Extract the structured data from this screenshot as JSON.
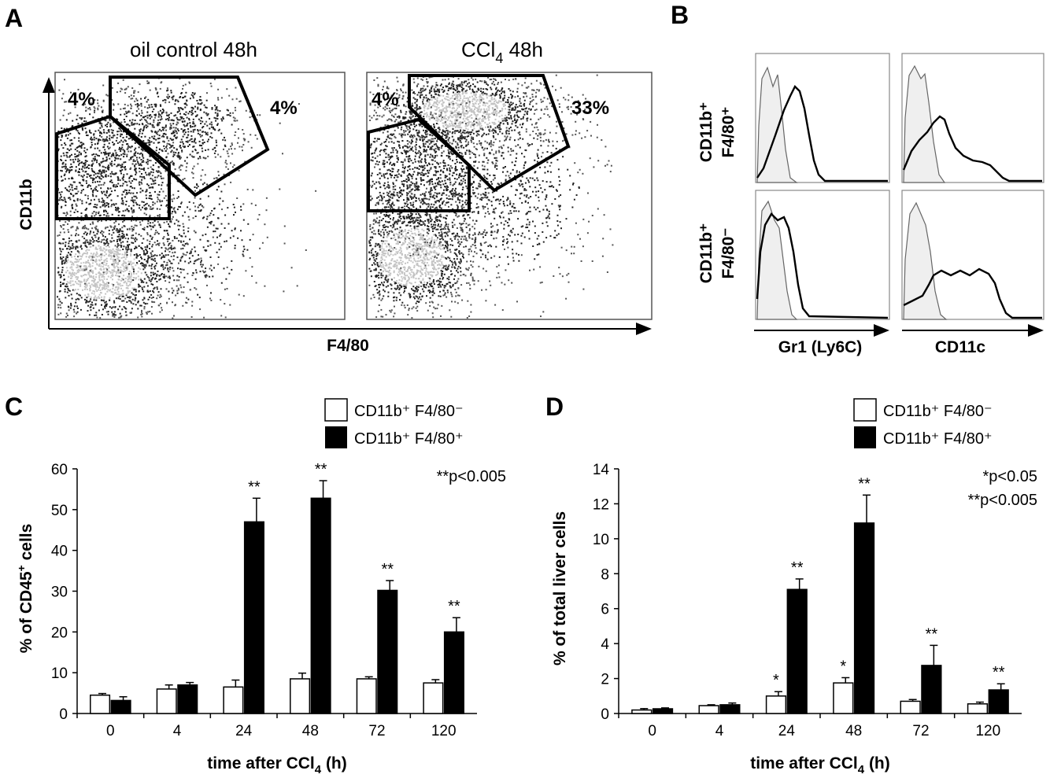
{
  "panels": {
    "a": {
      "label": "A",
      "title_oil": "oil control 48h",
      "title_ccl4_main": "CCl",
      "title_ccl4_sub": "4",
      "title_ccl4_tail": " 48h",
      "y_label": "CD11b",
      "x_label": "F4/80",
      "oil_gates": [
        "4%",
        "4%"
      ],
      "ccl4_gates": [
        "4%",
        "33%"
      ]
    },
    "b": {
      "label": "B",
      "row1_line1": "CD11b⁺",
      "row1_line2": "F4/80⁺",
      "row2_line1": "CD11b⁺",
      "row2_line2": "F4/80⁻",
      "x_label_1": "Gr1 (Ly6C)",
      "x_label_2": "CD11c"
    },
    "c": {
      "label": "C"
    },
    "d": {
      "label": "D"
    }
  },
  "colors": {
    "open_bar": "#ffffff",
    "filled_bar": "#000000",
    "density_light": "#c4c4c4",
    "histogram_fill": "#efefef"
  },
  "chart_data": [
    {
      "type": "bar",
      "panel": "C",
      "categories": [
        "0",
        "4",
        "24",
        "48",
        "72",
        "120"
      ],
      "series": [
        {
          "name": "CD11b⁺ F4/80⁻",
          "values": [
            4.5,
            6.0,
            6.5,
            8.5,
            8.5,
            7.5
          ],
          "errors": [
            0.4,
            1.0,
            1.7,
            1.4,
            0.5,
            0.8
          ],
          "stars": [
            "",
            "",
            "",
            "",
            "",
            ""
          ]
        },
        {
          "name": "CD11b⁺ F4/80⁺",
          "values": [
            3.2,
            7.0,
            47.0,
            52.8,
            30.2,
            20.0
          ],
          "errors": [
            0.9,
            0.6,
            5.8,
            4.3,
            2.4,
            3.5
          ],
          "stars": [
            "",
            "",
            "**",
            "**",
            "**",
            "**"
          ]
        }
      ],
      "ylabel_main": "% of CD45",
      "ylabel_sup": "+",
      "ylabel_tail": " cells",
      "xlabel_main": "time after CCl",
      "xlabel_sub": "4",
      "xlabel_tail": " (h)",
      "yticks": [
        "0",
        "10",
        "20",
        "30",
        "40",
        "50",
        "60"
      ],
      "ylim": [
        0,
        60
      ],
      "significance": [
        "**p<0.005"
      ],
      "legend_position": "top-right",
      "grid": false
    },
    {
      "type": "bar",
      "panel": "D",
      "categories": [
        "0",
        "4",
        "24",
        "48",
        "72",
        "120"
      ],
      "series": [
        {
          "name": "CD11b⁺ F4/80⁻",
          "values": [
            0.2,
            0.45,
            1.0,
            1.75,
            0.7,
            0.55
          ],
          "errors": [
            0.08,
            0.05,
            0.25,
            0.3,
            0.1,
            0.1
          ],
          "stars": [
            "",
            "",
            "*",
            "*",
            "",
            ""
          ]
        },
        {
          "name": "CD11b⁺ F4/80⁺",
          "values": [
            0.27,
            0.5,
            7.1,
            10.9,
            2.75,
            1.35
          ],
          "errors": [
            0.05,
            0.1,
            0.6,
            1.6,
            1.15,
            0.35
          ],
          "stars": [
            "",
            "",
            "**",
            "**",
            "**",
            "**"
          ]
        }
      ],
      "ylabel_main": "% of total liver cells",
      "xlabel_main": "time after CCl",
      "xlabel_sub": "4",
      "xlabel_tail": " (h)",
      "yticks": [
        "0",
        "2",
        "4",
        "6",
        "8",
        "10",
        "12",
        "14"
      ],
      "ylim": [
        0,
        14
      ],
      "significance": [
        "*p<0.05",
        "**p<0.005"
      ],
      "legend_position": "top-right",
      "grid": false
    }
  ]
}
